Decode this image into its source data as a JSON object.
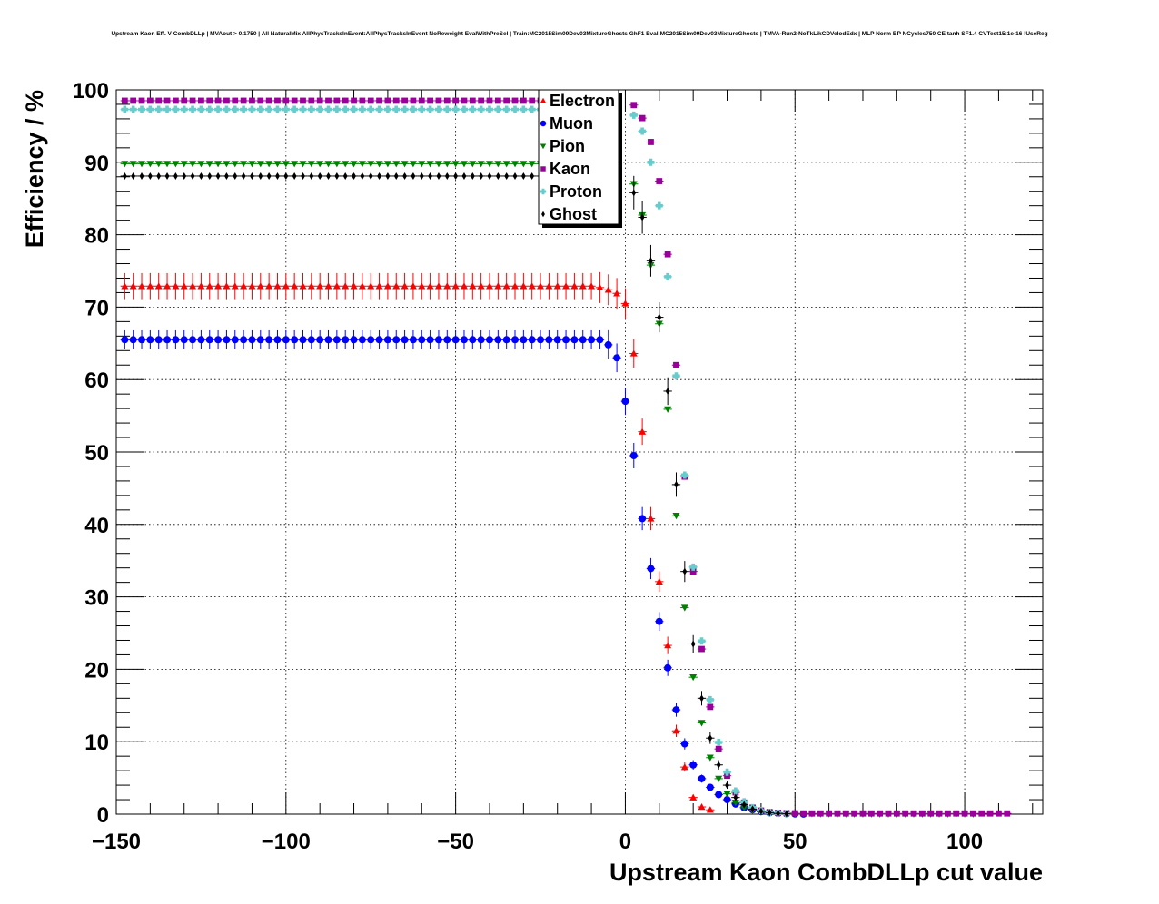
{
  "chart_data": {
    "type": "scatter",
    "title": "Upstream Kaon Eff. V CombDLLp | MVAout > 0.1750 | All NaturalMix AllPhysTracksInEvent:AllPhysTracksInEvent NoReweight EvalWithPreSel | Train:MC2015Sim09Dev03MixtureGhosts GhF1 Eval:MC2015Sim09Dev03MixtureGhosts | TMVA-Run2-NoTkLikCDVelodEdx | MLP Norm BP NCycles750 CE tanh SF1.4 CVTest15:1e-16 !UseReg",
    "xlabel": "Upstream Kaon CombDLLp cut value",
    "ylabel": "Efficiency / %",
    "xlim": [
      -150,
      123
    ],
    "ylim": [
      0,
      100
    ],
    "xticks": [
      "−150",
      "−100",
      "−50",
      "0",
      "50",
      "100"
    ],
    "xtick_values": [
      -150,
      -100,
      -50,
      0,
      50,
      100
    ],
    "yticks": [
      "0",
      "10",
      "20",
      "30",
      "40",
      "50",
      "60",
      "70",
      "80",
      "90",
      "100"
    ],
    "ytick_values": [
      0,
      10,
      20,
      30,
      40,
      50,
      60,
      70,
      80,
      90,
      100
    ],
    "grid": true,
    "legend_position": "top-center",
    "x_start": -147.5,
    "x_step": 2.5,
    "series": [
      {
        "name": "Electron",
        "color": "#ff0000",
        "marker": "triangle-up",
        "err_bar": true,
        "plateau": 72.9,
        "plateau_end": -10,
        "plateau_err": 1.8,
        "points": [
          [
            -7.5,
            72.7
          ],
          [
            -5,
            72.4
          ],
          [
            -2.5,
            71.9
          ],
          [
            0,
            70.5
          ],
          [
            2.5,
            63.6
          ],
          [
            5,
            52.8
          ],
          [
            7.5,
            40.8
          ],
          [
            10,
            32.1
          ],
          [
            12.5,
            23.3
          ],
          [
            15,
            11.5
          ],
          [
            17.5,
            6.5
          ],
          [
            20,
            2.3
          ],
          [
            22.5,
            1.0
          ],
          [
            25,
            0.6
          ]
        ]
      },
      {
        "name": "Muon",
        "color": "#0000ff",
        "marker": "circle",
        "err_bar": true,
        "plateau": 65.5,
        "plateau_end": -7.5,
        "plateau_err": 1.3,
        "points": [
          [
            -5,
            64.8
          ],
          [
            -2.5,
            63.0
          ],
          [
            0,
            57.0
          ],
          [
            2.5,
            49.5
          ],
          [
            5,
            40.8
          ],
          [
            7.5,
            33.9
          ],
          [
            10,
            26.6
          ],
          [
            12.5,
            20.2
          ],
          [
            15,
            14.4
          ],
          [
            17.5,
            9.7
          ],
          [
            20,
            6.8
          ],
          [
            22.5,
            4.9
          ],
          [
            25,
            3.7
          ],
          [
            27.5,
            2.7
          ],
          [
            30,
            2.0
          ],
          [
            32.5,
            1.4
          ],
          [
            35,
            0.9
          ],
          [
            37.5,
            0.6
          ],
          [
            40,
            0.35
          ],
          [
            42.5,
            0.2
          ],
          [
            45,
            0.1
          ],
          [
            47.5,
            0.05
          ],
          [
            50,
            0.03
          ],
          [
            52.5,
            0.01
          ]
        ]
      },
      {
        "name": "Pion",
        "color": "#008000",
        "marker": "triangle-down",
        "err_bar": false,
        "plateau": 89.8,
        "plateau_end": -25,
        "plateau_err": 0.3,
        "points": [
          [
            2.5,
            87.0
          ],
          [
            5,
            82.7
          ],
          [
            7.5,
            75.8
          ],
          [
            10,
            67.7
          ],
          [
            12.5,
            55.9
          ],
          [
            15,
            41.2
          ],
          [
            17.5,
            28.5
          ],
          [
            20,
            18.9
          ],
          [
            22.5,
            12.6
          ],
          [
            25,
            7.8
          ],
          [
            27.5,
            4.9
          ],
          [
            30,
            2.8
          ],
          [
            32.5,
            1.6
          ],
          [
            35,
            0.9
          ],
          [
            37.5,
            0.5
          ],
          [
            40,
            0.3
          ],
          [
            42.5,
            0.2
          ],
          [
            45,
            0.12
          ],
          [
            47.5,
            0.08
          ],
          [
            50,
            0.06
          ],
          [
            52.5,
            0.05
          ],
          [
            55,
            0.04
          ],
          [
            57.5,
            0.03
          ],
          [
            60,
            0.03
          ],
          [
            62.5,
            0.02
          ],
          [
            65,
            0.02
          ],
          [
            67.5,
            0.02
          ],
          [
            70,
            0.02
          ],
          [
            72.5,
            0.02
          ],
          [
            75,
            0.02
          ],
          [
            77.5,
            0.02
          ],
          [
            80,
            0.02
          ],
          [
            82.5,
            0.02
          ],
          [
            85,
            0.02
          ],
          [
            87.5,
            0.02
          ],
          [
            90,
            0.01
          ],
          [
            92.5,
            0.01
          ],
          [
            95,
            0.01
          ],
          [
            97.5,
            0.01
          ],
          [
            100,
            0.01
          ],
          [
            102.5,
            0.01
          ]
        ]
      },
      {
        "name": "Kaon",
        "color": "#990099",
        "marker": "square",
        "err_bar": false,
        "plateau": 98.5,
        "plateau_end": -25,
        "plateau_err": 0.2,
        "points": [
          [
            2.5,
            97.9
          ],
          [
            5,
            96.1
          ],
          [
            7.5,
            92.8
          ],
          [
            10,
            87.4
          ],
          [
            12.5,
            77.3
          ],
          [
            15,
            62.0
          ],
          [
            17.5,
            46.6
          ],
          [
            20,
            33.5
          ],
          [
            22.5,
            22.8
          ],
          [
            25,
            14.8
          ],
          [
            27.5,
            9.0
          ],
          [
            30,
            5.3
          ],
          [
            32.5,
            3.0
          ],
          [
            35,
            1.6
          ],
          [
            37.5,
            0.9
          ],
          [
            40,
            0.5
          ],
          [
            42.5,
            0.3
          ],
          [
            45,
            0.2
          ],
          [
            47.5,
            0.15
          ],
          [
            50,
            0.12
          ],
          [
            52.5,
            0.1
          ],
          [
            55,
            0.1
          ],
          [
            57.5,
            0.1
          ],
          [
            60,
            0.1
          ],
          [
            62.5,
            0.1
          ],
          [
            65,
            0.1
          ],
          [
            67.5,
            0.1
          ],
          [
            70,
            0.1
          ],
          [
            72.5,
            0.1
          ],
          [
            75,
            0.1
          ],
          [
            77.5,
            0.1
          ],
          [
            80,
            0.1
          ],
          [
            82.5,
            0.1
          ],
          [
            85,
            0.1
          ],
          [
            87.5,
            0.1
          ],
          [
            90,
            0.1
          ],
          [
            92.5,
            0.1
          ],
          [
            95,
            0.1
          ],
          [
            97.5,
            0.1
          ],
          [
            100,
            0.1
          ],
          [
            102.5,
            0.1
          ],
          [
            105,
            0.1
          ],
          [
            107.5,
            0.1
          ],
          [
            110,
            0.1
          ],
          [
            112.5,
            0.1
          ]
        ]
      },
      {
        "name": "Proton",
        "color": "#66cccc",
        "marker": "cross",
        "err_bar": false,
        "plateau": 97.3,
        "plateau_end": -25,
        "plateau_err": 0.2,
        "points": [
          [
            2.5,
            96.5
          ],
          [
            5,
            94.3
          ],
          [
            7.5,
            90.0
          ],
          [
            10,
            84.0
          ],
          [
            12.5,
            74.2
          ],
          [
            15,
            60.5
          ],
          [
            17.5,
            46.8
          ],
          [
            20,
            34.1
          ],
          [
            22.5,
            23.9
          ],
          [
            25,
            15.8
          ],
          [
            27.5,
            9.9
          ],
          [
            30,
            5.8
          ],
          [
            32.5,
            3.2
          ],
          [
            35,
            1.7
          ],
          [
            37.5,
            0.9
          ],
          [
            40,
            0.5
          ],
          [
            42.5,
            0.25
          ],
          [
            45,
            0.12
          ],
          [
            47.5,
            0.06
          ]
        ]
      },
      {
        "name": "Ghost",
        "color": "#000000",
        "marker": "diamond",
        "err_bar": true,
        "plateau": 88.1,
        "plateau_end": -25,
        "plateau_err": 0.3,
        "points": [
          [
            2.5,
            85.8
          ],
          [
            5,
            82.4
          ],
          [
            7.5,
            76.4
          ],
          [
            10,
            68.6
          ],
          [
            12.5,
            58.4
          ],
          [
            15,
            45.5
          ],
          [
            17.5,
            33.5
          ],
          [
            20,
            23.5
          ],
          [
            22.5,
            16.0
          ],
          [
            25,
            10.5
          ],
          [
            27.5,
            6.8
          ],
          [
            30,
            4.0
          ],
          [
            32.5,
            2.3
          ],
          [
            35,
            1.3
          ],
          [
            37.5,
            0.7
          ],
          [
            40,
            0.4
          ],
          [
            42.5,
            0.2
          ],
          [
            45,
            0.1
          ],
          [
            47.5,
            0.05
          ]
        ]
      }
    ]
  }
}
